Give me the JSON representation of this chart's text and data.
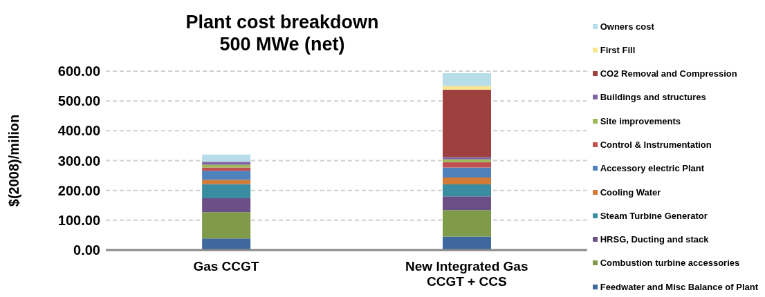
{
  "chart_data": {
    "type": "bar",
    "stacked": true,
    "title": "Plant cost breakdown\n500 MWe (net)",
    "ylabel": "$(2008)/milion",
    "categories": [
      "Gas CCGT",
      "New Integrated Gas CCGT + CCS"
    ],
    "ylim": [
      0,
      600
    ],
    "yticks": [
      {
        "value": 0,
        "label": "0.00"
      },
      {
        "value": 100,
        "label": "100.00"
      },
      {
        "value": 200,
        "label": "200.00"
      },
      {
        "value": 300,
        "label": "300.00"
      },
      {
        "value": 400,
        "label": "400.00"
      },
      {
        "value": 500,
        "label": "500.00"
      },
      {
        "value": 600,
        "label": "600.00"
      }
    ],
    "grid": "y",
    "legend": "right",
    "series": [
      {
        "name": "Feedwater and Misc Balance of Plant",
        "color": "#3f689e",
        "values": [
          39,
          45
        ]
      },
      {
        "name": "Combustion turbine accessories",
        "color": "#7f9a48",
        "values": [
          88,
          89
        ]
      },
      {
        "name": "HRSG, Ducting and stack",
        "color": "#6a5086",
        "values": [
          47,
          46
        ]
      },
      {
        "name": "Steam Turbine  Generator",
        "color": "#3a8ca0",
        "values": [
          47,
          40
        ]
      },
      {
        "name": "Cooling Water",
        "color": "#d27b38",
        "values": [
          15,
          23
        ]
      },
      {
        "name": "Accessory electric Plant",
        "color": "#4f81bd",
        "values": [
          30,
          34
        ]
      },
      {
        "name": "Control & Instrumentation",
        "color": "#c0504d",
        "values": [
          11,
          18
        ]
      },
      {
        "name": "Site improvements",
        "color": "#9bbb59",
        "values": [
          9,
          9
        ]
      },
      {
        "name": "Buildings and structures",
        "color": "#8064a2",
        "values": [
          10,
          8
        ]
      },
      {
        "name": "CO2 Removal and Compression",
        "color": "#9e413e",
        "values": [
          0,
          226
        ]
      },
      {
        "name": "First Fill",
        "color": "#f9e58e",
        "values": [
          0,
          12
        ]
      },
      {
        "name": "Owners cost",
        "color": "#b7dde8",
        "values": [
          24,
          43
        ]
      }
    ]
  }
}
